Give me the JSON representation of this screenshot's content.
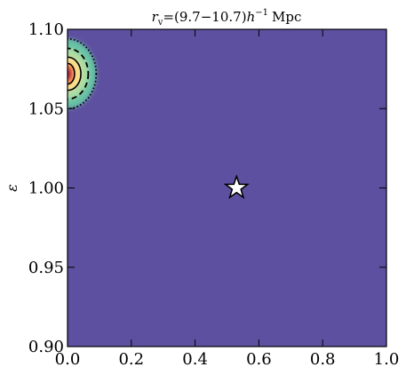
{
  "chart_data": {
    "type": "heatmap",
    "title": "r_v =(9.7−10.7)h⁻¹ Mpc",
    "title_parts": {
      "symbol": "r",
      "subscript": "v",
      "range": "=(9.7−10.7)",
      "h": "h",
      "exponent": "−1",
      "unit": "Mpc"
    },
    "xlabel": "",
    "ylabel": "ε",
    "xlim": [
      0.0,
      1.0
    ],
    "ylim": [
      0.9,
      1.1
    ],
    "x_ticks": [
      "0.0",
      "0.2",
      "0.4",
      "0.6",
      "0.8",
      "1.0"
    ],
    "y_ticks": [
      "0.90",
      "0.95",
      "1.00",
      "1.05",
      "1.10"
    ],
    "background_color": "#5e50a1",
    "peak": {
      "x": 0.0,
      "y": 1.072
    },
    "contours": [
      {
        "level": "outer",
        "style": "dotted",
        "fill": "#66c2a5",
        "rx": 0.09,
        "ry": 0.022
      },
      {
        "level": "mid",
        "style": "dashed",
        "fill": "#abdda4",
        "rx": 0.065,
        "ry": 0.016
      },
      {
        "level": "inner",
        "style": "solid",
        "fill": "#fee08b",
        "rx": 0.042,
        "ry": 0.0105
      },
      {
        "level": "core",
        "style": "solid",
        "fill": "#f46d43",
        "rx": 0.022,
        "ry": 0.0065
      },
      {
        "level": "peak",
        "style": "solid",
        "fill": "#9e0142",
        "rx": 0.011,
        "ry": 0.0035
      }
    ],
    "marker": {
      "type": "star",
      "x": 0.53,
      "y": 1.0,
      "color": "#ffffff"
    },
    "grid": false
  }
}
